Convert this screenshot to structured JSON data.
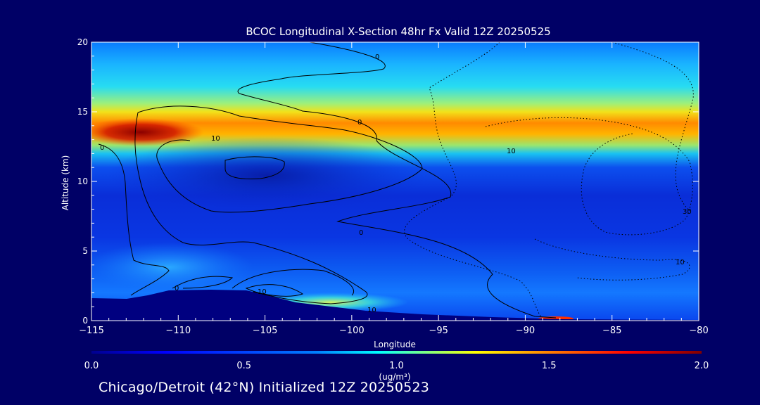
{
  "chart_data": {
    "type": "heatmap",
    "title": "BCOC Longitudinal X-Section 48hr  Fx Valid 12Z 20250525",
    "xlabel": "Longitude",
    "ylabel": "Altitude (km)",
    "xlim": [
      -115,
      -80
    ],
    "ylim": [
      0,
      20
    ],
    "x_ticks": [
      -115,
      -110,
      -105,
      -100,
      -95,
      -90,
      -85,
      -80
    ],
    "x_tick_labels": [
      "−115",
      "−110",
      "−105",
      "−100",
      "−95",
      "−90",
      "−85",
      "−80"
    ],
    "y_ticks": [
      0,
      5,
      10,
      15,
      20
    ],
    "y_tick_labels": [
      "0",
      "5",
      "10",
      "15",
      "20"
    ],
    "colorbar": {
      "min": 0.0,
      "max": 2.0,
      "ticks": [
        0.0,
        0.5,
        1.0,
        1.5,
        2.0
      ],
      "tick_labels": [
        "0.0",
        "0.5",
        "1.0",
        "1.5",
        "2.0"
      ],
      "units_label": "(ug/m³)",
      "colors": [
        "#00008f",
        "#0000ff",
        "#0080ff",
        "#00ffff",
        "#80ff80",
        "#ffff00",
        "#ff8000",
        "#ff0000",
        "#800000"
      ]
    },
    "layers": [
      {
        "altitude_km": 19.0,
        "value": 0.25
      },
      {
        "altitude_km": 17.5,
        "value": 0.5
      },
      {
        "altitude_km": 16.0,
        "value": 0.85
      },
      {
        "altitude_km": 14.0,
        "value_west": 2.0,
        "value_east": 1.4
      },
      {
        "altitude_km": 12.0,
        "value": 0.7
      },
      {
        "altitude_km": 9.0,
        "value": 0.2
      },
      {
        "altitude_km": 4.0,
        "value": 0.35
      },
      {
        "altitude_km": 1.2,
        "value_at_-100": 0.95
      }
    ],
    "contour_labels": [
      "0",
      "0",
      "10",
      "0",
      "10",
      "0",
      "0",
      "10",
      "10",
      "30",
      "10"
    ]
  },
  "colors": {
    "background": "#000066",
    "terrain": "#000080"
  },
  "footer_text": "Chicago/Detroit (42°N) Initialized 12Z 20250523"
}
